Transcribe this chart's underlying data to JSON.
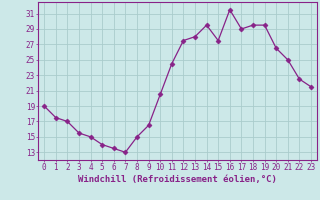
{
  "x": [
    0,
    1,
    2,
    3,
    4,
    5,
    6,
    7,
    8,
    9,
    10,
    11,
    12,
    13,
    14,
    15,
    16,
    17,
    18,
    19,
    20,
    21,
    22,
    23
  ],
  "y": [
    19.0,
    17.5,
    17.0,
    15.5,
    15.0,
    14.0,
    13.5,
    13.0,
    15.0,
    16.5,
    20.5,
    24.5,
    27.5,
    28.0,
    29.5,
    27.5,
    31.5,
    29.0,
    29.5,
    29.5,
    26.5,
    25.0,
    22.5,
    21.5
  ],
  "line_color": "#882288",
  "marker": "D",
  "marker_size": 2.5,
  "bg_color": "#cce8e8",
  "grid_color": "#aacccc",
  "xlabel": "Windchill (Refroidissement éolien,°C)",
  "xlabel_color": "#882288",
  "tick_color": "#882288",
  "spine_color": "#882288",
  "yticks": [
    13,
    15,
    17,
    19,
    21,
    23,
    25,
    27,
    29,
    31
  ],
  "xticks": [
    0,
    1,
    2,
    3,
    4,
    5,
    6,
    7,
    8,
    9,
    10,
    11,
    12,
    13,
    14,
    15,
    16,
    17,
    18,
    19,
    20,
    21,
    22,
    23
  ],
  "ylim": [
    12.0,
    32.5
  ],
  "xlim": [
    -0.5,
    23.5
  ],
  "xlabel_fontsize": 6.5,
  "tick_fontsize": 5.5
}
